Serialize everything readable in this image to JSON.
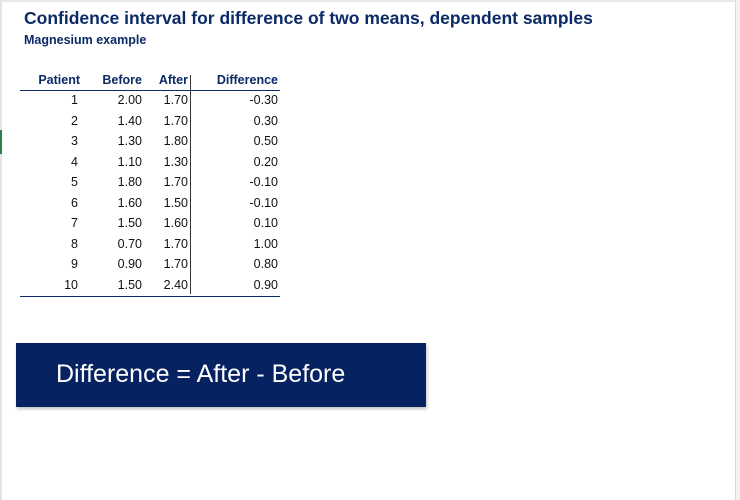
{
  "title": "Confidence interval for difference of two means, dependent samples",
  "subtitle": "Magnesium example",
  "table": {
    "headers": [
      "Patient",
      "Before",
      "After",
      "Difference"
    ],
    "rows": [
      [
        "1",
        "2.00",
        "1.70",
        "-0.30"
      ],
      [
        "2",
        "1.40",
        "1.70",
        "0.30"
      ],
      [
        "3",
        "1.30",
        "1.80",
        "0.50"
      ],
      [
        "4",
        "1.10",
        "1.30",
        "0.20"
      ],
      [
        "5",
        "1.80",
        "1.70",
        "-0.10"
      ],
      [
        "6",
        "1.60",
        "1.50",
        "-0.10"
      ],
      [
        "7",
        "1.50",
        "1.60",
        "0.10"
      ],
      [
        "8",
        "0.70",
        "1.70",
        "1.00"
      ],
      [
        "9",
        "0.90",
        "1.70",
        "0.80"
      ],
      [
        "10",
        "1.50",
        "2.40",
        "0.90"
      ]
    ]
  },
  "banner": {
    "text": "Difference = After - Before",
    "background": "#072261",
    "text_color": "#ffffff"
  },
  "colors": {
    "heading": "#0b2a66"
  }
}
